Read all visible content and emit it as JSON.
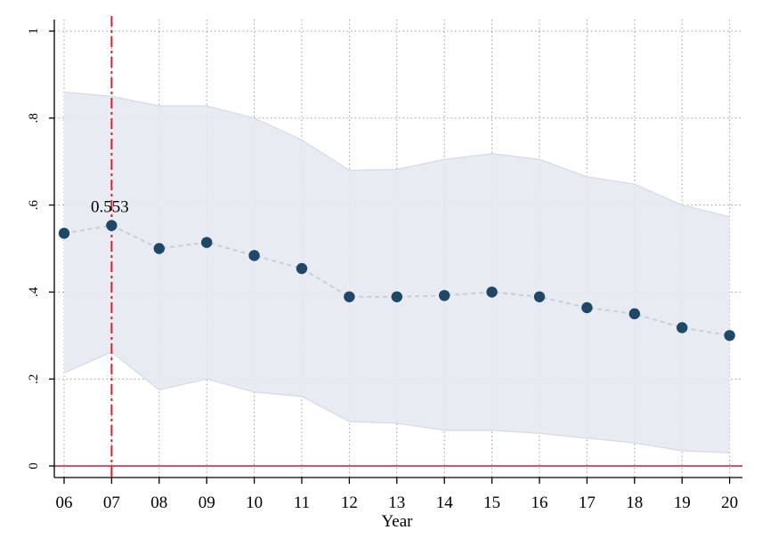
{
  "chart_data": {
    "type": "line",
    "title": "",
    "xlabel": "Year",
    "ylabel": "",
    "categories": [
      "06",
      "07",
      "08",
      "09",
      "10",
      "11",
      "12",
      "13",
      "14",
      "15",
      "16",
      "17",
      "18",
      "19",
      "20"
    ],
    "series": [
      {
        "values": [
          0.535,
          0.553,
          0.5,
          0.514,
          0.484,
          0.454,
          0.389,
          0.389,
          0.392,
          0.4,
          0.389,
          0.364,
          0.35,
          0.318,
          0.3
        ]
      }
    ],
    "ci_upper": [
      0.86,
      0.85,
      0.828,
      0.828,
      0.8,
      0.75,
      0.68,
      0.682,
      0.705,
      0.718,
      0.705,
      0.665,
      0.648,
      0.6,
      0.573
    ],
    "ci_lower": [
      0.214,
      0.262,
      0.175,
      0.2,
      0.17,
      0.16,
      0.102,
      0.098,
      0.082,
      0.082,
      0.075,
      0.064,
      0.053,
      0.035,
      0.03
    ],
    "y_ticks": [
      0,
      0.2,
      0.4,
      0.6,
      0.8,
      1
    ],
    "y_tick_labels": [
      "0",
      ".2",
      ".4",
      ".6",
      ".8",
      "1"
    ],
    "ylim": [
      0,
      1
    ],
    "annotation": {
      "category": "07",
      "text": "0.553"
    },
    "reference_vertical_line": {
      "category": "07",
      "color": "#d8222a",
      "style": "dash-dot"
    },
    "reference_horizontal_line": {
      "value": 0,
      "color": "#c4184b"
    },
    "grid": true,
    "colors": {
      "point": "#1f4868",
      "connector": "#c9ced6",
      "ci_band": "#e6eaf1",
      "ci_edge": "#d3dae5"
    }
  }
}
